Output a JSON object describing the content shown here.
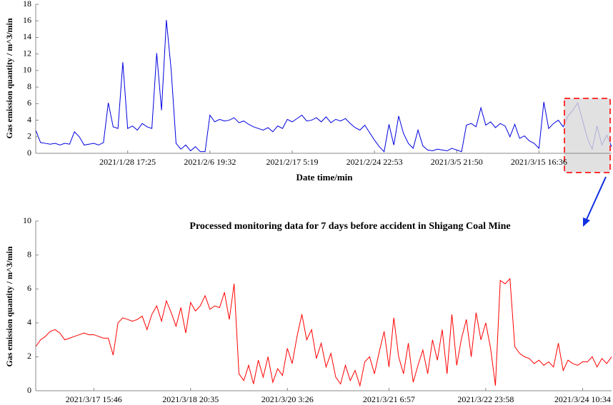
{
  "chart_data": [
    {
      "type": "line",
      "x_label": "Date time/min",
      "y_label": "Gas emission quantity / m^3/min",
      "color": "#0000e0",
      "ylim": [
        0,
        18
      ],
      "yticks": [
        0,
        2,
        4,
        6,
        8,
        10,
        12,
        14,
        16,
        18
      ],
      "categories": [
        null,
        null,
        null,
        null,
        null,
        null,
        null,
        null,
        null,
        null,
        null,
        null,
        null,
        null,
        null,
        null,
        null,
        null,
        null,
        "2021/1/28 17:25",
        null,
        null,
        null,
        null,
        null,
        null,
        null,
        null,
        null,
        null,
        null,
        null,
        null,
        null,
        null,
        null,
        "2021/2/6 19:32",
        null,
        null,
        null,
        null,
        null,
        null,
        null,
        null,
        null,
        null,
        null,
        null,
        null,
        null,
        null,
        null,
        "2021/2/17 5:19",
        null,
        null,
        null,
        null,
        null,
        null,
        null,
        null,
        null,
        null,
        null,
        null,
        null,
        null,
        null,
        null,
        "2021/2/24 22:53",
        null,
        null,
        null,
        null,
        null,
        null,
        null,
        null,
        null,
        null,
        null,
        null,
        null,
        null,
        null,
        null,
        "2021/3/5 21:50",
        null,
        null,
        null,
        null,
        null,
        null,
        null,
        null,
        null,
        null,
        null,
        null,
        null,
        null,
        null,
        null,
        "2021/3/15 16:36",
        null,
        null,
        null,
        null,
        null,
        null,
        null,
        null,
        null,
        null,
        null,
        null,
        null,
        null,
        null
      ],
      "values": [
        2.8,
        1.3,
        1.2,
        1.1,
        1.2,
        1.0,
        1.2,
        1.1,
        2.6,
        2.0,
        1.0,
        1.1,
        1.2,
        1.0,
        1.3,
        6.1,
        3.2,
        3.0,
        11.0,
        3.0,
        3.3,
        2.8,
        3.6,
        3.2,
        3.0,
        12.1,
        5.2,
        16.1,
        10.0,
        1.2,
        0.5,
        1.0,
        0.3,
        0.8,
        0.2,
        0.2,
        4.6,
        3.8,
        4.1,
        3.9,
        4.0,
        4.3,
        3.7,
        3.9,
        3.5,
        3.2,
        3.0,
        2.8,
        3.1,
        2.6,
        3.3,
        3.0,
        4.1,
        3.8,
        4.2,
        4.6,
        3.9,
        4.0,
        4.3,
        3.8,
        4.4,
        3.7,
        4.1,
        3.9,
        4.2,
        3.6,
        3.1,
        2.8,
        3.4,
        2.5,
        1.6,
        0.8,
        0.2,
        3.5,
        1.0,
        4.5,
        2.4,
        1.2,
        0.6,
        2.8,
        0.9,
        0.4,
        0.3,
        0.5,
        0.4,
        0.3,
        0.6,
        0.4,
        0.2,
        3.4,
        3.6,
        3.2,
        5.5,
        3.4,
        3.8,
        3.1,
        3.6,
        3.3,
        2.0,
        3.5,
        1.8,
        2.1,
        1.5,
        1.2,
        0.6,
        6.2,
        3.0,
        3.6,
        4.0,
        3.2,
        4.5,
        5.2,
        6.1,
        4.0,
        1.8,
        0.5,
        3.3,
        1.0,
        2.2,
        0.8
      ]
    },
    {
      "type": "line",
      "title": "Processed monitoring data for 7 days before accident in Shigang Coal Mine",
      "y_label": "Gas emission quantity / m^3/min",
      "color": "#ff0000",
      "ylim": [
        0,
        10
      ],
      "yticks": [
        0,
        2,
        4,
        6,
        8,
        10
      ],
      "categories": [
        null,
        null,
        null,
        null,
        null,
        null,
        null,
        null,
        null,
        null,
        null,
        null,
        "2021/3/17 15:46",
        null,
        null,
        null,
        null,
        null,
        null,
        null,
        null,
        null,
        null,
        null,
        null,
        null,
        null,
        null,
        null,
        null,
        null,
        null,
        "2021/3/18 20:35",
        null,
        null,
        null,
        null,
        null,
        null,
        null,
        null,
        null,
        null,
        null,
        null,
        null,
        null,
        null,
        null,
        null,
        null,
        null,
        "2021/3/20 3:26",
        null,
        null,
        null,
        null,
        null,
        null,
        null,
        null,
        null,
        null,
        null,
        null,
        null,
        null,
        null,
        null,
        null,
        null,
        null,
        null,
        "2021/3/21 6:57",
        null,
        null,
        null,
        null,
        null,
        null,
        null,
        null,
        null,
        null,
        null,
        null,
        null,
        null,
        null,
        null,
        null,
        null,
        null,
        "2021/3/22 23:58",
        null,
        null,
        null,
        null,
        null,
        null,
        null,
        null,
        null,
        null,
        null,
        null,
        null,
        null,
        null,
        null,
        null,
        null,
        null,
        "2021/3/24 10:34",
        null,
        null,
        null,
        null,
        null,
        null
      ],
      "values": [
        2.6,
        3.0,
        3.2,
        3.5,
        3.6,
        3.4,
        3.0,
        3.1,
        3.2,
        3.3,
        3.4,
        3.3,
        3.3,
        3.2,
        3.1,
        3.1,
        2.1,
        4.0,
        4.3,
        4.2,
        4.1,
        4.2,
        4.4,
        3.6,
        4.5,
        5.0,
        4.1,
        5.3,
        4.6,
        3.8,
        4.9,
        3.4,
        5.2,
        4.7,
        5.0,
        5.6,
        4.8,
        5.0,
        4.9,
        5.8,
        4.2,
        6.3,
        1.0,
        0.6,
        1.5,
        0.4,
        1.8,
        0.8,
        2.0,
        0.5,
        1.3,
        0.9,
        2.5,
        1.6,
        3.2,
        4.5,
        3.0,
        3.6,
        1.9,
        2.8,
        1.4,
        2.2,
        0.8,
        0.4,
        1.5,
        0.6,
        1.2,
        0.3,
        1.7,
        2.0,
        1.0,
        2.3,
        3.5,
        1.4,
        4.3,
        2.0,
        1.0,
        2.8,
        0.5,
        1.5,
        2.4,
        1.0,
        3.0,
        1.8,
        3.6,
        1.0,
        4.5,
        1.5,
        3.1,
        4.2,
        2.0,
        4.6,
        3.0,
        4.0,
        2.5,
        0.3,
        6.5,
        6.3,
        6.6,
        2.6,
        2.2,
        2.0,
        1.9,
        1.6,
        1.8,
        1.5,
        1.7,
        1.4,
        2.8,
        1.2,
        1.8,
        1.6,
        1.5,
        1.7,
        1.7,
        2.0,
        1.4,
        1.9,
        1.6,
        2.0
      ]
    }
  ]
}
